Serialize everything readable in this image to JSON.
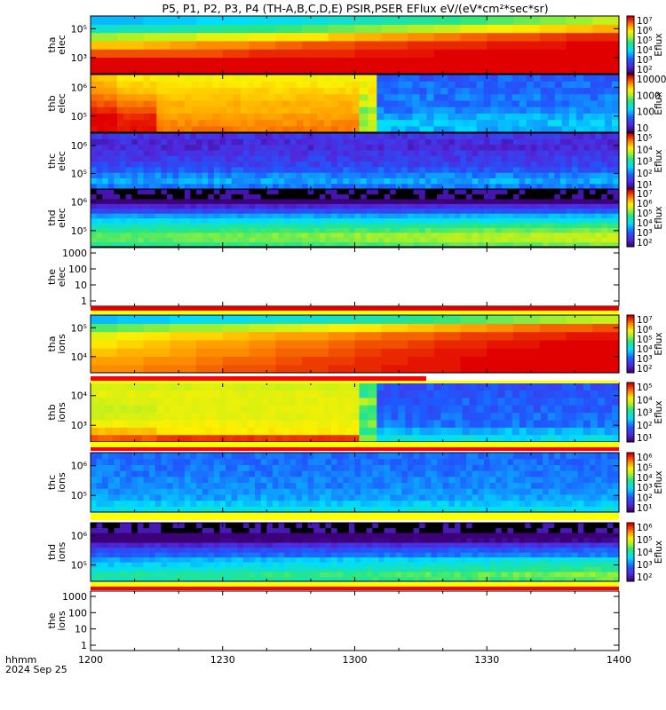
{
  "chart_data": {
    "type": "heatmap",
    "title": "P5, P1, P2, P3, P4 (TH-A,B,C,D,E) PSIR,PSER EFlux eV/(eV*cm²*sec*sr)",
    "x_axis": {
      "label": "hhmm",
      "date_label": "2024 Sep 25",
      "range": [
        "1200",
        "1400"
      ],
      "ticks": [
        "1200",
        "1230",
        "1300",
        "1330",
        "1400"
      ]
    },
    "panels": [
      {
        "probe": "tha",
        "species": "elec",
        "ylabel": [
          "tha",
          "elec"
        ],
        "yticks": [
          "10³",
          "10⁵"
        ],
        "scale": "log",
        "colorbar": {
          "label": "Eflux",
          "ticks": [
            "10²",
            "10³",
            "10⁴",
            "10⁵",
            "10⁶",
            "10⁷"
          ],
          "range": [
            100,
            10000000
          ]
        },
        "rows_low_to_high_energy": [
          [
            7,
            7,
            7,
            7,
            7,
            7,
            7,
            7,
            7,
            7,
            7,
            7,
            7,
            7,
            7,
            7,
            7,
            7,
            7,
            7
          ],
          [
            7,
            7,
            7,
            7,
            7,
            7,
            7,
            7,
            7,
            7,
            7,
            7,
            7,
            7,
            7,
            7,
            7,
            7,
            7,
            7
          ],
          [
            6.6,
            6.6,
            6.6,
            6.6,
            6.6,
            6.7,
            6.8,
            6.8,
            6.8,
            6.8,
            6.9,
            6.9,
            6.9,
            7,
            7,
            7,
            7,
            7,
            7,
            7
          ],
          [
            6.0,
            6.0,
            6.1,
            6.2,
            6.3,
            6.3,
            6.4,
            6.5,
            6.6,
            6.6,
            6.7,
            6.7,
            6.8,
            6.8,
            6.8,
            6.9,
            6.9,
            6.9,
            7,
            7
          ],
          [
            5.2,
            5.3,
            5.4,
            5.4,
            5.6,
            5.6,
            5.7,
            5.8,
            5.8,
            6.0,
            6.1,
            6.2,
            6.3,
            6.4,
            6.5,
            6.6,
            6.6,
            6.7,
            6.8,
            6.8
          ],
          [
            4.3,
            4.4,
            4.4,
            4.5,
            4.6,
            4.7,
            4.7,
            4.8,
            4.9,
            5.0,
            5.1,
            5.2,
            5.3,
            5.4,
            5.6,
            5.7,
            5.8,
            5.9,
            6.0,
            6.1
          ],
          [
            3.8,
            3.8,
            3.9,
            3.9,
            4.0,
            4.0,
            4.1,
            4.1,
            4.2,
            4.3,
            4.4,
            4.5,
            4.6,
            4.7,
            4.8,
            4.9,
            5.0,
            5.1,
            5.2,
            5.4
          ]
        ]
      },
      {
        "probe": "thb",
        "species": "elec",
        "ylabel": [
          "thb",
          "elec"
        ],
        "yticks": [
          "10⁵",
          "10⁶"
        ],
        "scale": "log",
        "colorbar": {
          "label": "Eflux",
          "ticks": [
            "10",
            "100",
            "1000",
            "10000"
          ],
          "range": [
            1,
            100000
          ]
        },
        "segments_eflux_exp": [
          {
            "from": "1200",
            "to": "1206",
            "rows": [
              5,
              5,
              5,
              4.8,
              4.6,
              4.4,
              4.2,
              4.1,
              4.0
            ]
          },
          {
            "from": "1206",
            "to": "1215",
            "rows": [
              4.9,
              4.9,
              4.8,
              4.6,
              4.4,
              4.2,
              4.0,
              3.9,
              3.8
            ]
          },
          {
            "from": "1215",
            "to": "1301",
            "rows": [
              4.4,
              4.3,
              4.2,
              4.1,
              4.1,
              4.0,
              3.9,
              3.8,
              3.7
            ]
          },
          {
            "from": "1301",
            "to": "1305",
            "rows": [
              3.2,
              3.2,
              3.4,
              3.0,
              3.5,
              3.4,
              3.7,
              3.6,
              3.6
            ]
          },
          {
            "from": "1305",
            "to": "1400",
            "rows": [
              1.8,
              1.9,
              1.7,
              1.5,
              1.4,
              1.4,
              1.3,
              1.3,
              1.2
            ]
          }
        ]
      },
      {
        "probe": "thc",
        "species": "elec",
        "ylabel": [
          "thc",
          "elec"
        ],
        "yticks": [
          "10⁵",
          "10⁶"
        ],
        "scale": "log",
        "colorbar": {
          "label": "Eflux",
          "ticks": [
            "10¹",
            "10²",
            "10³",
            "10⁴",
            "10⁵"
          ],
          "range": [
            10,
            500000
          ]
        },
        "profile_low_to_high": [
          2.3,
          2.6,
          2.4,
          2.1,
          1.9,
          1.8,
          1.7,
          1.6,
          1.6,
          1.7
        ]
      },
      {
        "probe": "thd",
        "species": "elec",
        "ylabel": [
          "thd",
          "elec"
        ],
        "yticks": [
          "10⁵",
          "10⁶"
        ],
        "scale": "log",
        "colorbar": {
          "label": "Eflux",
          "ticks": [
            "10²",
            "10³",
            "10⁴",
            "10⁵",
            "10⁶",
            "10⁷"
          ],
          "range": [
            100,
            10000000
          ]
        },
        "profile_low_to_high": [
          4.6,
          4.9,
          4.9,
          4.6,
          4.3,
          4.0,
          3.6,
          3.0,
          2.5,
          1.8,
          0,
          0
        ]
      },
      {
        "probe": "the",
        "species": "elec",
        "ylabel": [
          "the",
          "elec"
        ],
        "yticks": [
          "1",
          "10",
          "100",
          "1000"
        ],
        "scale": "log",
        "empty": true
      },
      {
        "probe": "tha",
        "species": "ions",
        "ylabel": [
          "tha",
          "ions"
        ],
        "yticks": [
          "10⁴",
          "10⁵"
        ],
        "scale": "log",
        "colorbar": {
          "label": "Eflux",
          "ticks": [
            "10²",
            "10³",
            "10⁴",
            "10⁵",
            "10⁶",
            "10⁷"
          ],
          "range": [
            100,
            10000000
          ]
        },
        "rows_low_to_high_energy": [
          [
            6.3,
            6.3,
            6.4,
            6.4,
            6.5,
            6.6,
            6.6,
            6.7,
            6.7,
            6.8,
            6.8,
            6.9,
            6.9,
            6.9,
            7,
            7,
            7,
            7,
            7,
            7
          ],
          [
            6.2,
            6.2,
            6.3,
            6.3,
            6.4,
            6.5,
            6.5,
            6.6,
            6.7,
            6.7,
            6.8,
            6.8,
            6.9,
            6.9,
            7,
            7,
            7,
            7,
            7,
            7
          ],
          [
            6.0,
            6.1,
            6.1,
            6.2,
            6.3,
            6.3,
            6.4,
            6.5,
            6.5,
            6.6,
            6.7,
            6.8,
            6.8,
            6.9,
            6.9,
            7,
            7,
            7,
            7,
            7
          ],
          [
            5.8,
            5.9,
            6.0,
            6.1,
            6.2,
            6.2,
            6.3,
            6.4,
            6.4,
            6.5,
            6.6,
            6.6,
            6.7,
            6.8,
            6.8,
            6.9,
            6.9,
            7,
            7,
            7
          ],
          [
            5.6,
            5.7,
            5.8,
            5.9,
            5.9,
            6.0,
            6.1,
            6.2,
            6.2,
            6.3,
            6.4,
            6.5,
            6.5,
            6.6,
            6.7,
            6.7,
            6.8,
            6.8,
            6.9,
            6.9
          ],
          [
            4.9,
            5.0,
            5.1,
            5.2,
            5.2,
            5.3,
            5.4,
            5.5,
            5.6,
            5.7,
            5.8,
            5.9,
            6.0,
            6.1,
            6.2,
            6.3,
            6.4,
            6.5,
            6.5,
            6.6
          ],
          [
            3.8,
            3.9,
            3.9,
            4.0,
            4.1,
            4.1,
            4.2,
            4.3,
            4.3,
            4.4,
            4.5,
            4.6,
            4.7,
            4.8,
            4.9,
            5.0,
            5.1,
            5.2,
            5.3,
            5.4
          ]
        ]
      },
      {
        "probe": "thb",
        "species": "ions",
        "ylabel": [
          "thb",
          "ions"
        ],
        "yticks": [
          "10³",
          "10⁴"
        ],
        "scale": "log",
        "colorbar": {
          "label": "Eflux",
          "ticks": [
            "10¹",
            "10²",
            "10³",
            "10⁴",
            "10⁵"
          ],
          "range": [
            1,
            500000
          ]
        },
        "segments_eflux_exp": [
          {
            "from": "1200",
            "to": "1215",
            "rows": [
              5.2,
              4.6,
              4.2,
              4.0,
              3.9,
              4.0,
              4.1,
              4.0
            ]
          },
          {
            "from": "1215",
            "to": "1301",
            "rows": [
              5.4,
              4.3,
              4.2,
              4.1,
              4.1,
              4.1,
              4.1,
              4.0
            ]
          },
          {
            "from": "1301",
            "to": "1305",
            "rows": [
              3.4,
              3.0,
              3.5,
              3.2,
              3.4,
              3.7,
              3.0,
              3.2
            ]
          },
          {
            "from": "1305",
            "to": "1400",
            "rows": [
              2.4,
              2.0,
              1.6,
              1.5,
              1.4,
              1.4,
              1.3,
              1.3
            ]
          }
        ]
      },
      {
        "probe": "thc",
        "species": "ions",
        "ylabel": [
          "thc",
          "ions"
        ],
        "yticks": [
          "10⁵",
          "10⁶"
        ],
        "scale": "log",
        "colorbar": {
          "label": "Eflux",
          "ticks": [
            "10¹",
            "10²",
            "10³",
            "10⁴",
            "10⁵",
            "10⁶"
          ],
          "range": [
            1,
            1000000
          ]
        },
        "profile_low_to_high": [
          2.6,
          2.3,
          2.0,
          1.9,
          1.8,
          1.8,
          1.7,
          1.7,
          1.6,
          1.6
        ]
      },
      {
        "probe": "thd",
        "species": "ions",
        "ylabel": [
          "thd",
          "ions"
        ],
        "yticks": [
          "10⁵",
          "10⁶"
        ],
        "scale": "log",
        "colorbar": {
          "label": "Eflux",
          "ticks": [
            "10²",
            "10³",
            "10⁴",
            "10⁵",
            "10⁶"
          ],
          "range": [
            100,
            1000000
          ]
        },
        "profile_low_to_high": [
          3.9,
          4.0,
          3.7,
          3.5,
          3.3,
          3.0,
          2.8,
          2.4,
          1.9,
          1.5,
          0,
          0
        ]
      },
      {
        "probe": "the",
        "species": "ions",
        "ylabel": [
          "the",
          "ions"
        ],
        "yticks": [
          "1",
          "10",
          "100",
          "1000"
        ],
        "scale": "log",
        "empty": true
      }
    ]
  }
}
